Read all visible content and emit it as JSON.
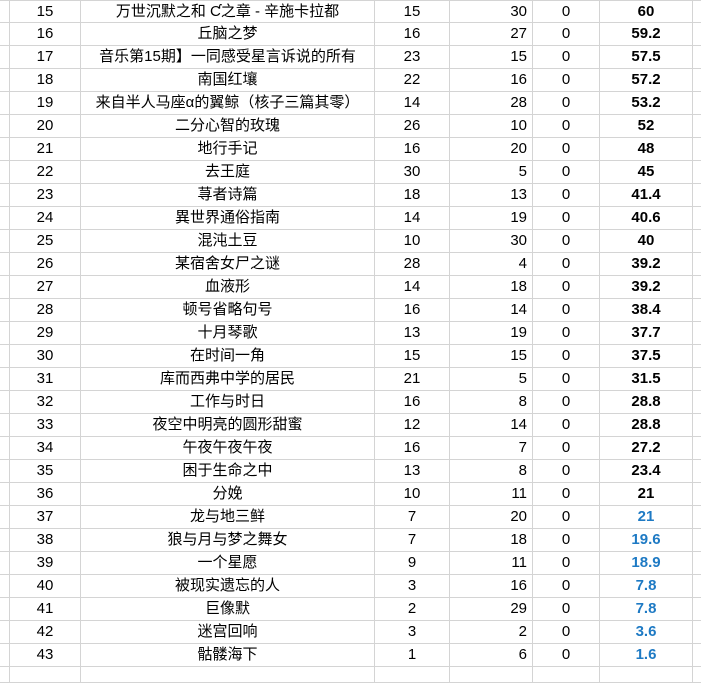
{
  "colors": {
    "black": "#000000",
    "blue": "#1e7ac4",
    "gridline": "#d4d4d4"
  },
  "table": {
    "rows": [
      {
        "index": "15",
        "title": "万世沉默之和 Ƈ之章 - 辛施卡拉都",
        "a": "15",
        "b": "30",
        "c": "0",
        "score": "60",
        "score_color": "black"
      },
      {
        "index": "16",
        "title": "丘脑之梦",
        "a": "16",
        "b": "27",
        "c": "0",
        "score": "59.2",
        "score_color": "black"
      },
      {
        "index": "17",
        "title": "音乐第15期】一同感受星言诉说的所有",
        "a": "23",
        "b": "15",
        "c": "0",
        "score": "57.5",
        "score_color": "black"
      },
      {
        "index": "18",
        "title": "南国红壤",
        "a": "22",
        "b": "16",
        "c": "0",
        "score": "57.2",
        "score_color": "black"
      },
      {
        "index": "19",
        "title": "来自半人马座α的翼鲸（核子三篇其零）",
        "a": "14",
        "b": "28",
        "c": "0",
        "score": "53.2",
        "score_color": "black"
      },
      {
        "index": "20",
        "title": "二分心智的玫瑰",
        "a": "26",
        "b": "10",
        "c": "0",
        "score": "52",
        "score_color": "black"
      },
      {
        "index": "21",
        "title": "地行手记",
        "a": "16",
        "b": "20",
        "c": "0",
        "score": "48",
        "score_color": "black"
      },
      {
        "index": "22",
        "title": "去王庭",
        "a": "30",
        "b": "5",
        "c": "0",
        "score": "45",
        "score_color": "black"
      },
      {
        "index": "23",
        "title": "荨者诗篇",
        "a": "18",
        "b": "13",
        "c": "0",
        "score": "41.4",
        "score_color": "black"
      },
      {
        "index": "24",
        "title": "異世界通俗指南",
        "a": "14",
        "b": "19",
        "c": "0",
        "score": "40.6",
        "score_color": "black"
      },
      {
        "index": "25",
        "title": "混沌土豆",
        "a": "10",
        "b": "30",
        "c": "0",
        "score": "40",
        "score_color": "black"
      },
      {
        "index": "26",
        "title": "某宿舍女尸之谜",
        "a": "28",
        "b": "4",
        "c": "0",
        "score": "39.2",
        "score_color": "black"
      },
      {
        "index": "27",
        "title": "血液形",
        "a": "14",
        "b": "18",
        "c": "0",
        "score": "39.2",
        "score_color": "black"
      },
      {
        "index": "28",
        "title": "顿号省略句号",
        "a": "16",
        "b": "14",
        "c": "0",
        "score": "38.4",
        "score_color": "black"
      },
      {
        "index": "29",
        "title": "十月琴歌",
        "a": "13",
        "b": "19",
        "c": "0",
        "score": "37.7",
        "score_color": "black"
      },
      {
        "index": "30",
        "title": "在时间一角",
        "a": "15",
        "b": "15",
        "c": "0",
        "score": "37.5",
        "score_color": "black"
      },
      {
        "index": "31",
        "title": "库而西弗中学的居民",
        "a": "21",
        "b": "5",
        "c": "0",
        "score": "31.5",
        "score_color": "black"
      },
      {
        "index": "32",
        "title": "工作与时日",
        "a": "16",
        "b": "8",
        "c": "0",
        "score": "28.8",
        "score_color": "black"
      },
      {
        "index": "33",
        "title": "夜空中明亮的圆形甜蜜",
        "a": "12",
        "b": "14",
        "c": "0",
        "score": "28.8",
        "score_color": "black"
      },
      {
        "index": "34",
        "title": "午夜午夜午夜",
        "a": "16",
        "b": "7",
        "c": "0",
        "score": "27.2",
        "score_color": "black"
      },
      {
        "index": "35",
        "title": "困于生命之中",
        "a": "13",
        "b": "8",
        "c": "0",
        "score": "23.4",
        "score_color": "black"
      },
      {
        "index": "36",
        "title": "分娩",
        "a": "10",
        "b": "11",
        "c": "0",
        "score": "21",
        "score_color": "black"
      },
      {
        "index": "37",
        "title": "龙与地三鲜",
        "a": "7",
        "b": "20",
        "c": "0",
        "score": "21",
        "score_color": "blue"
      },
      {
        "index": "38",
        "title": "狼与月与梦之舞女",
        "a": "7",
        "b": "18",
        "c": "0",
        "score": "19.6",
        "score_color": "blue"
      },
      {
        "index": "39",
        "title": "一个星愿",
        "a": "9",
        "b": "11",
        "c": "0",
        "score": "18.9",
        "score_color": "blue"
      },
      {
        "index": "40",
        "title": "被现实遗忘的人",
        "a": "3",
        "b": "16",
        "c": "0",
        "score": "7.8",
        "score_color": "blue"
      },
      {
        "index": "41",
        "title": "巨像默",
        "a": "2",
        "b": "29",
        "c": "0",
        "score": "7.8",
        "score_color": "blue"
      },
      {
        "index": "42",
        "title": "迷宫回响",
        "a": "3",
        "b": "2",
        "c": "0",
        "score": "3.6",
        "score_color": "blue"
      },
      {
        "index": "43",
        "title": "骷髅海下",
        "a": "1",
        "b": "6",
        "c": "0",
        "score": "1.6",
        "score_color": "blue"
      }
    ]
  }
}
